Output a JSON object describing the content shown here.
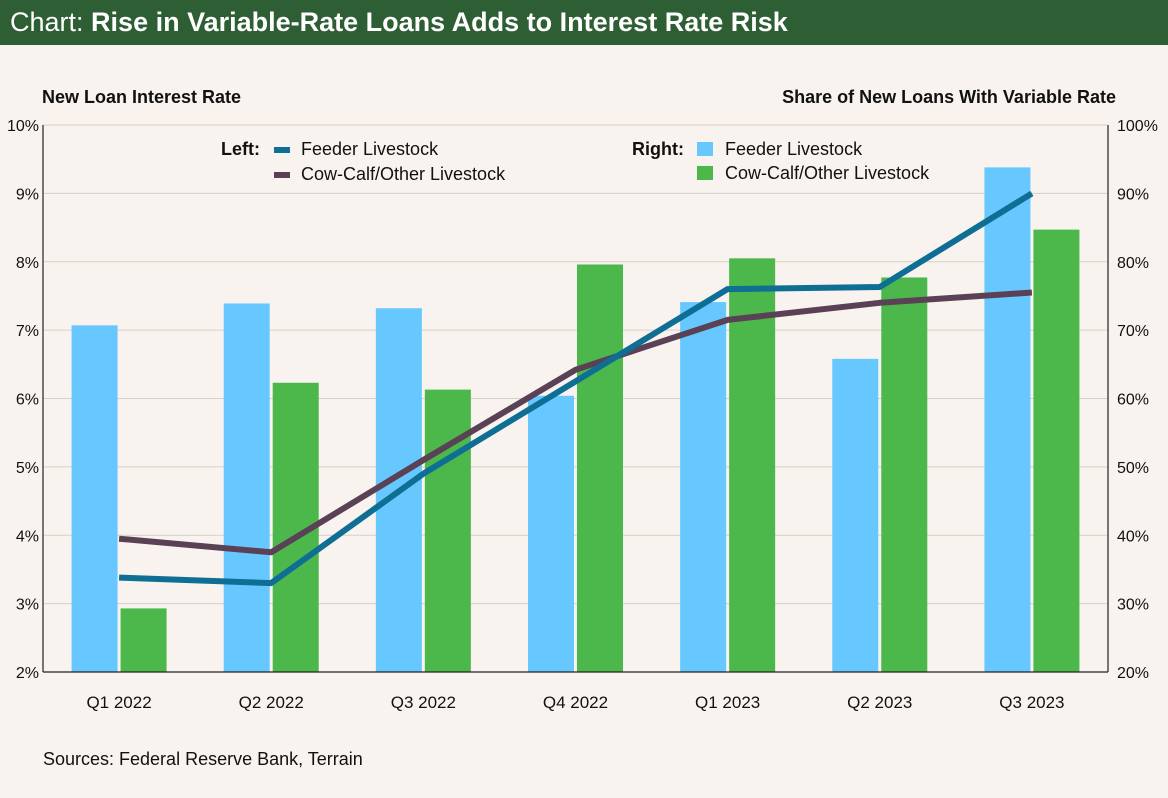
{
  "header": {
    "prefix": "Chart:",
    "title": "Rise in Variable-Rate Loans Adds to Interest Rate Risk"
  },
  "footer": {
    "sources": "Sources: Federal Reserve Bank, Terrain"
  },
  "colors": {
    "header_bg": "#2e5e34",
    "background": "#f8f3ee",
    "feeder_line": "#0e6e94",
    "cowcalf_line": "#5a4156",
    "feeder_bar": "#66c8ff",
    "cowcalf_bar": "#4cb84c",
    "grid": "#d7cfc9"
  },
  "chart_data": {
    "type": "bar",
    "combo": "bars on right axis, lines on left axis",
    "title": "Rise in Variable-Rate Loans Adds to Interest Rate Risk",
    "left_axis": {
      "label": "New Loan Interest Rate",
      "ylim": [
        2,
        10
      ],
      "ticks": [
        "2%",
        "3%",
        "4%",
        "5%",
        "6%",
        "7%",
        "8%",
        "9%",
        "10%"
      ]
    },
    "right_axis": {
      "label": "Share of New Loans With Variable Rate",
      "ylim": [
        20,
        100
      ],
      "ticks": [
        "20%",
        "30%",
        "40%",
        "50%",
        "60%",
        "70%",
        "80%",
        "90%",
        "100%"
      ]
    },
    "categories": [
      "Q1 2022",
      "Q2 2022",
      "Q3 2022",
      "Q4 2022",
      "Q1 2023",
      "Q2 2023",
      "Q3 2023"
    ],
    "legend": {
      "left_label": "Left:",
      "right_label": "Right:",
      "placement": "top"
    },
    "bars": [
      {
        "name": "Feeder Livestock",
        "axis": "right",
        "values": [
          70.7,
          73.9,
          73.2,
          60.4,
          74.1,
          65.8,
          93.8
        ]
      },
      {
        "name": "Cow-Calf/Other Livestock",
        "axis": "right",
        "values": [
          29.3,
          62.3,
          61.3,
          79.6,
          80.5,
          77.7,
          84.7
        ]
      }
    ],
    "lines": [
      {
        "name": "Feeder Livestock",
        "axis": "left",
        "values": [
          3.38,
          3.3,
          4.9,
          6.25,
          7.6,
          7.63,
          9.0
        ]
      },
      {
        "name": "Cow-Calf/Other Livestock",
        "axis": "left",
        "values": [
          3.95,
          3.75,
          5.1,
          6.42,
          7.15,
          7.4,
          7.55
        ]
      }
    ],
    "grid": true
  }
}
